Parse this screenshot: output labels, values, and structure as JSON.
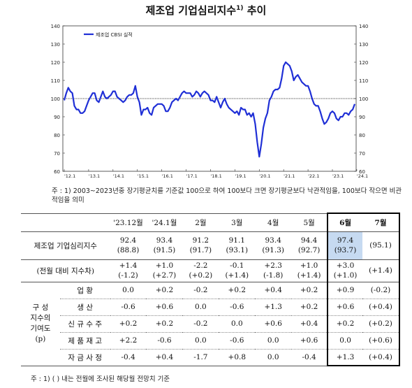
{
  "title": "제조업 기업심리지수",
  "title_sup": "1)",
  "title_suffix": " 추이",
  "chart_data": {
    "type": "line",
    "legend": "제조업 CBSI 실적",
    "legend_position": "top-left",
    "ylim": [
      60,
      140
    ],
    "yticks": [
      60,
      70,
      80,
      90,
      100,
      110,
      120,
      130,
      140
    ],
    "xtick_labels": [
      "'12.1",
      "'13.1",
      "'14.1",
      "'15.1",
      "'16.1",
      "'17.1",
      "'18.1",
      "'19.1",
      "'20.1",
      "'21.1",
      "'22.1",
      "'23.1",
      "'24.1"
    ],
    "reference_line": 100,
    "color": "#1f2fd6",
    "series": [
      {
        "start": "2012-01",
        "values": [
          99,
          103,
          106,
          104,
          103,
          96,
          94,
          94,
          92,
          92,
          93,
          96,
          99,
          101,
          103,
          103,
          99,
          98,
          101,
          104,
          101,
          100,
          101,
          102,
          104,
          104,
          101,
          100,
          99,
          98,
          99,
          101,
          102,
          102,
          103,
          107,
          101,
          98,
          91,
          94,
          94,
          95,
          92,
          91,
          95,
          96,
          97,
          97,
          97,
          96,
          93,
          93,
          95,
          98,
          99,
          100,
          99,
          101,
          103,
          104,
          103,
          103,
          103,
          101,
          102,
          104,
          103,
          101,
          103,
          104,
          103,
          102,
          99,
          99,
          98,
          101,
          98,
          95,
          98,
          100,
          97,
          95,
          94,
          93,
          92,
          93,
          91,
          95,
          94,
          94,
          91,
          92,
          90,
          92,
          86,
          76,
          68,
          75,
          84,
          89,
          92,
          99,
          101,
          104,
          105,
          105,
          106,
          111,
          118,
          120,
          119,
          118,
          115,
          110,
          112,
          113,
          111,
          109,
          108,
          107,
          107,
          104,
          100,
          97,
          96,
          96,
          93,
          89,
          86,
          87,
          89,
          92,
          93,
          92,
          89,
          88,
          90,
          90,
          92,
          92,
          91,
          93,
          94,
          97
        ]
      }
    ]
  },
  "note1": "주 : 1)  2003~2023년중 장기평균치를 기준값 100으로 하여 100보다 크면 장기평균보다 낙관적임을, 100보다 작으면 비관적임을 의미",
  "table": {
    "headers": [
      "'23.12월",
      "'24.1월",
      "2월",
      "3월",
      "4월",
      "5월",
      "6월",
      "7월"
    ],
    "main_label": "제조업 기업심리지수",
    "main": [
      {
        "v": "92.4",
        "s": "(88.8)"
      },
      {
        "v": "93.4",
        "s": "(91.5)"
      },
      {
        "v": "91.2",
        "s": "(91.7)"
      },
      {
        "v": "91.1",
        "s": "(93.1)"
      },
      {
        "v": "93.4",
        "s": "(91.3)"
      },
      {
        "v": "94.4",
        "s": "(92.7)"
      },
      {
        "v": "97.4",
        "s": "(93.7)"
      },
      {
        "v": "",
        "s": "(95.1)"
      }
    ],
    "change_label": "(전월 대비 지수차)",
    "change": [
      {
        "v": "+1.4",
        "s": "(-1.2)"
      },
      {
        "v": "+1.0",
        "s": "(+2.7)"
      },
      {
        "v": "-2.2",
        "s": "(+0.2)"
      },
      {
        "v": "-0.1",
        "s": "(+1.4)"
      },
      {
        "v": "+2.3",
        "s": "(-1.8)"
      },
      {
        "v": "+1.0",
        "s": "(+1.4)"
      },
      {
        "v": "+3.0",
        "s": "(+1.0)"
      },
      {
        "v": "",
        "s": "(+1.4)"
      }
    ],
    "contrib_label": [
      "구  성",
      "지수의",
      "기여도",
      "(p)"
    ],
    "contrib": [
      {
        "label": "업   황",
        "values": [
          "0.0",
          "+0.2",
          "-0.2",
          "+0.2",
          "+0.4",
          "+0.2",
          "+0.9",
          "(-0.2)"
        ]
      },
      {
        "label": "생   산",
        "values": [
          "-0.6",
          "+0.6",
          "0.0",
          "-0.6",
          "+1.3",
          "+0.2",
          "+0.6",
          "(+0.4)"
        ]
      },
      {
        "label": "신 규 수 주",
        "values": [
          "+0.2",
          "+0.2",
          "-0.2",
          "0.0",
          "+0.6",
          "+0.4",
          "+0.2",
          "(+0.2)"
        ]
      },
      {
        "label": "제 품 재 고",
        "values": [
          "+2.2",
          "-0.6",
          "0.0",
          "-0.6",
          "0.0",
          "+0.6",
          "0.0",
          "(+0.6)"
        ]
      },
      {
        "label": "자 금 사 정",
        "values": [
          "-0.4",
          "+0.4",
          "-1.7",
          "+0.8",
          "0.0",
          "-0.4",
          "+1.3",
          "(+0.4)"
        ]
      }
    ]
  },
  "note2": "주 : 1) (     ) 내는 전월에 조사된 해당월 전망치 기준"
}
